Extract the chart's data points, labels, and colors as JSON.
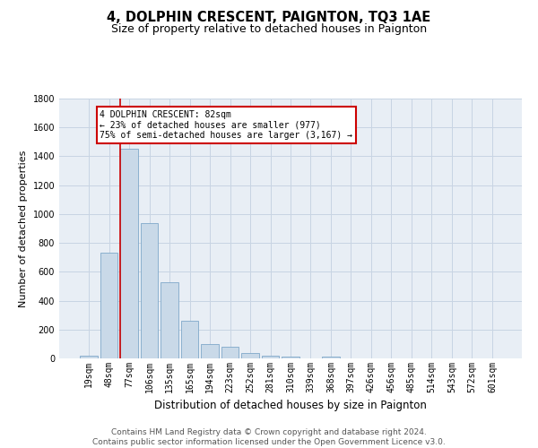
{
  "title": "4, DOLPHIN CRESCENT, PAIGNTON, TQ3 1AE",
  "subtitle": "Size of property relative to detached houses in Paignton",
  "xlabel": "Distribution of detached houses by size in Paignton",
  "ylabel": "Number of detached properties",
  "footer1": "Contains HM Land Registry data © Crown copyright and database right 2024.",
  "footer2": "Contains public sector information licensed under the Open Government Licence v3.0.",
  "categories": [
    "19sqm",
    "48sqm",
    "77sqm",
    "106sqm",
    "135sqm",
    "165sqm",
    "194sqm",
    "223sqm",
    "252sqm",
    "281sqm",
    "310sqm",
    "339sqm",
    "368sqm",
    "397sqm",
    "426sqm",
    "456sqm",
    "485sqm",
    "514sqm",
    "543sqm",
    "572sqm",
    "601sqm"
  ],
  "values": [
    20,
    730,
    1450,
    940,
    530,
    260,
    100,
    80,
    35,
    20,
    15,
    2,
    10,
    2,
    2,
    2,
    2,
    2,
    2,
    2,
    2
  ],
  "bar_color": "#c9d9e8",
  "bar_edge_color": "#7fa8c9",
  "red_line_index": 2,
  "annotation_text": "4 DOLPHIN CRESCENT: 82sqm\n← 23% of detached houses are smaller (977)\n75% of semi-detached houses are larger (3,167) →",
  "annotation_box_color": "#ffffff",
  "annotation_box_edge_color": "#cc0000",
  "red_line_color": "#cc0000",
  "ylim": [
    0,
    1800
  ],
  "yticks": [
    0,
    200,
    400,
    600,
    800,
    1000,
    1200,
    1400,
    1600,
    1800
  ],
  "title_fontsize": 10.5,
  "subtitle_fontsize": 9,
  "xlabel_fontsize": 8.5,
  "ylabel_fontsize": 8,
  "tick_fontsize": 7,
  "footer_fontsize": 6.5,
  "background_color": "#ffffff",
  "axes_bg_color": "#e8eef5",
  "grid_color": "#c8d4e3"
}
